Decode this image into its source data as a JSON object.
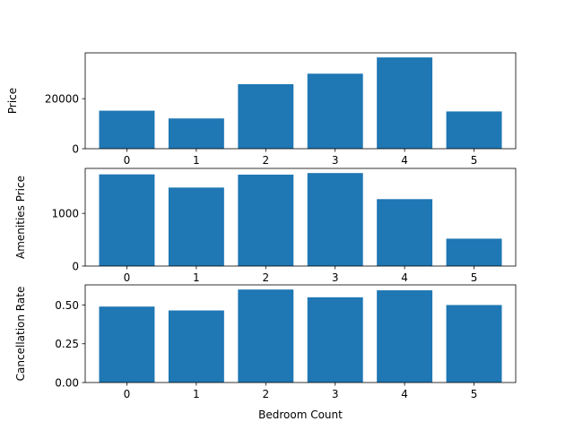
{
  "chart_data": [
    {
      "type": "bar",
      "categories": [
        "0",
        "1",
        "2",
        "3",
        "4",
        "5"
      ],
      "values": [
        15200,
        12100,
        25800,
        30000,
        36500,
        14900
      ],
      "ylabel": "Price",
      "xlabel": "",
      "ylim": [
        0,
        38325
      ],
      "yticks": [
        0,
        20000
      ],
      "grid": false,
      "bar_color": "#1f77b4"
    },
    {
      "type": "bar",
      "categories": [
        "0",
        "1",
        "2",
        "3",
        "4",
        "5"
      ],
      "values": [
        1740,
        1490,
        1735,
        1765,
        1270,
        520
      ],
      "ylabel": "Amenities Price",
      "xlabel": "",
      "ylim": [
        0,
        1853
      ],
      "yticks": [
        0,
        1000
      ],
      "grid": false,
      "bar_color": "#1f77b4"
    },
    {
      "type": "bar",
      "categories": [
        "0",
        "1",
        "2",
        "3",
        "4",
        "5"
      ],
      "values": [
        0.49,
        0.465,
        0.6,
        0.55,
        0.595,
        0.5
      ],
      "ylabel": "Cancellation Rate",
      "xlabel": "Bedroom Count",
      "ylim": [
        0,
        0.63
      ],
      "yticks": [
        "0.00",
        "0.25",
        "0.50"
      ],
      "grid": false,
      "bar_color": "#1f77b4"
    }
  ]
}
